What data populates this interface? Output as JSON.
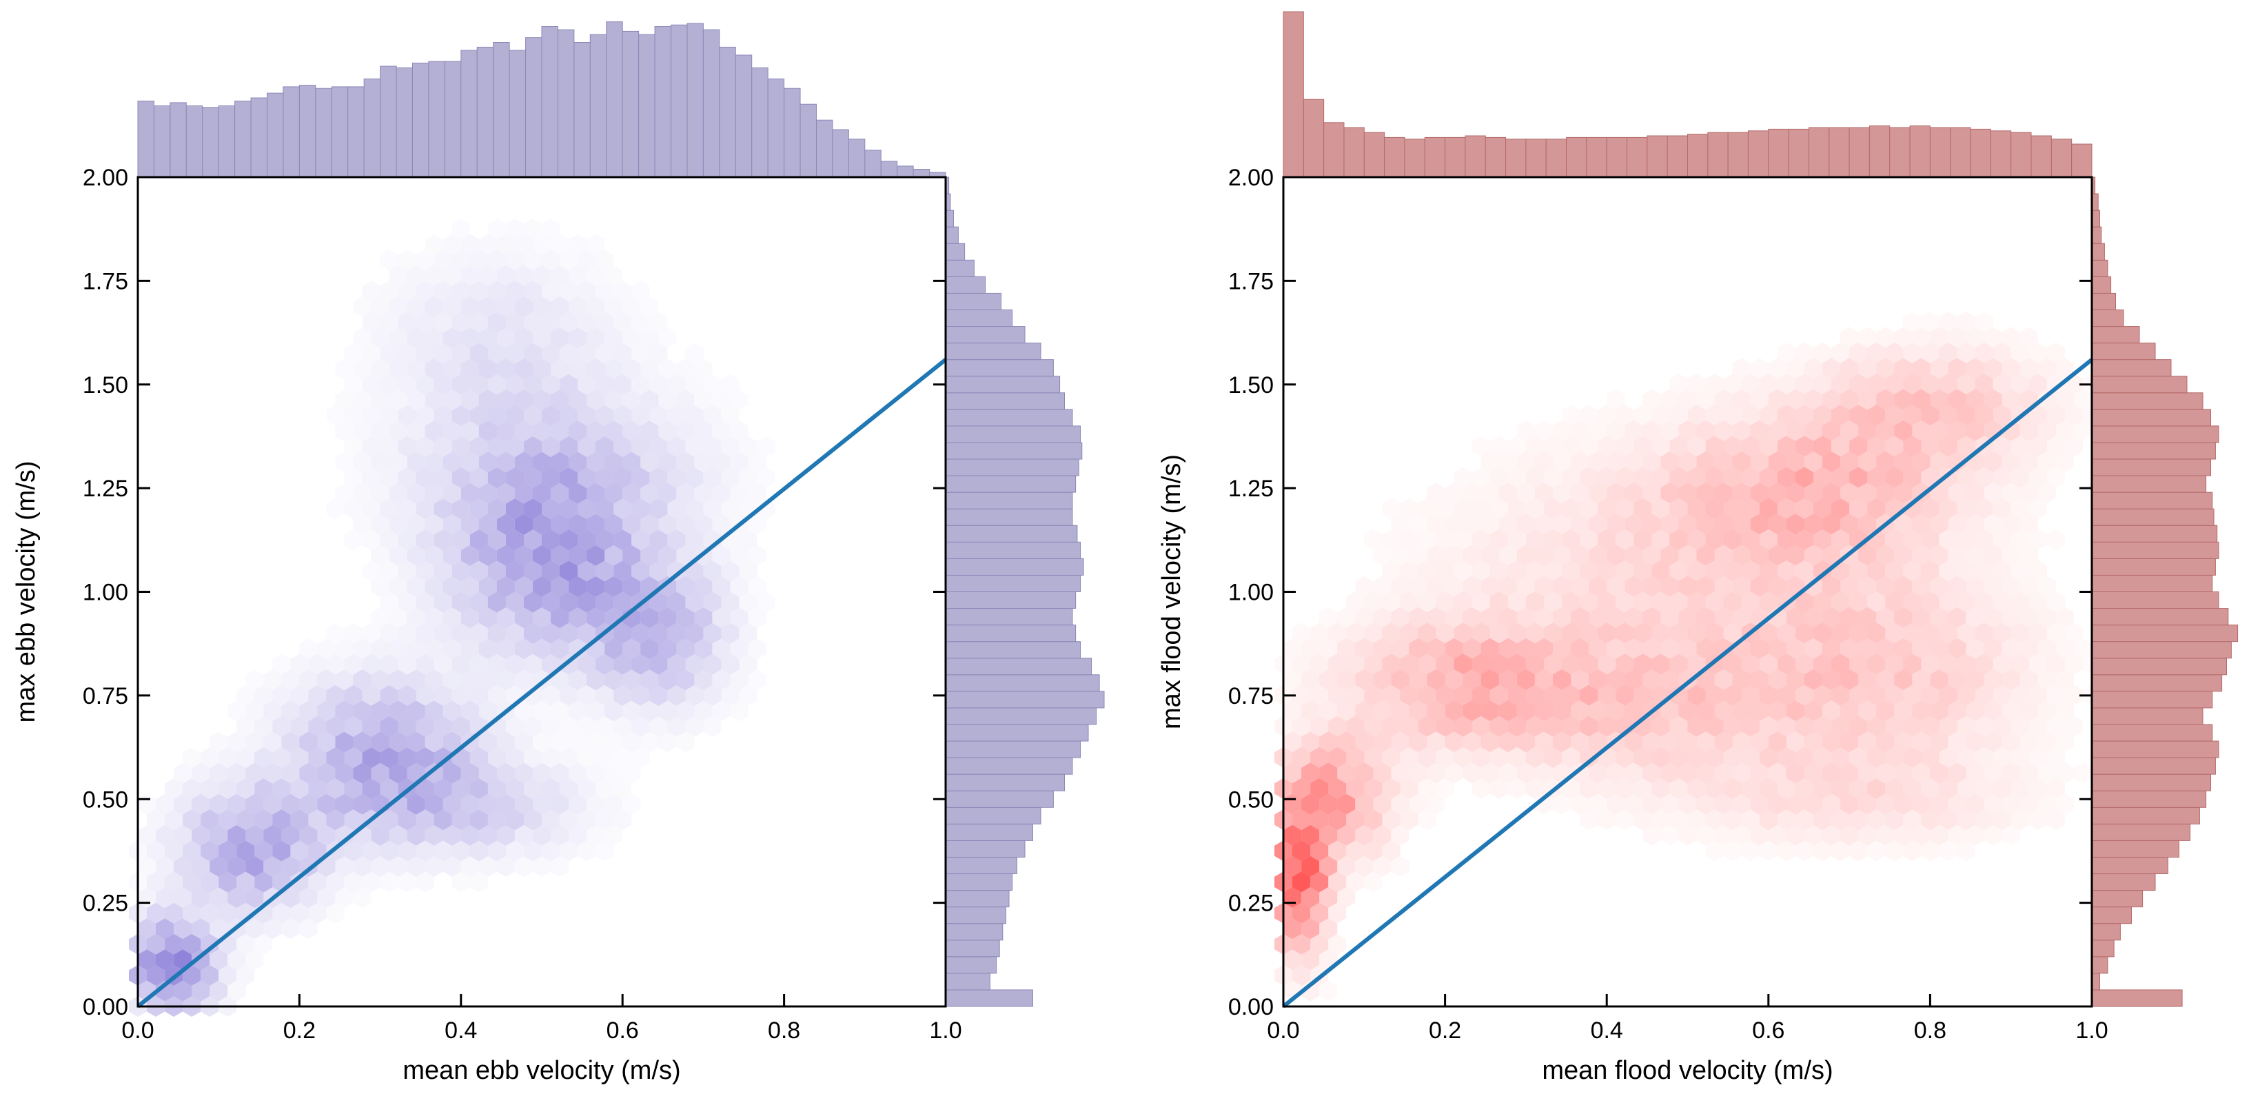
{
  "chart_data": [
    {
      "type": "hexbin",
      "title": "",
      "xlabel": "mean ebb velocity (m/s)",
      "ylabel": "max ebb velocity (m/s)",
      "xlim": [
        0,
        1.0
      ],
      "ylim": [
        0,
        2.0
      ],
      "xticks": [
        0.0,
        0.2,
        0.4,
        0.6,
        0.8,
        1.0
      ],
      "xtick_labels": [
        "0.0",
        "0.2",
        "0.4",
        "0.6",
        "0.8",
        "1.0"
      ],
      "yticks": [
        0.0,
        0.25,
        0.5,
        0.75,
        1.0,
        1.25,
        1.5,
        1.75,
        2.0
      ],
      "ytick_labels": [
        "0.00",
        "0.25",
        "0.50",
        "0.75",
        "1.00",
        "1.25",
        "1.50",
        "1.75",
        "2.00"
      ],
      "colors": {
        "hex": "#6a5acd",
        "hist_fill": "#b3b0d3",
        "hist_edge": "#8c88b8",
        "line": "#1f77b4"
      },
      "reference_line": {
        "x": [
          0.0,
          1.0
        ],
        "y": [
          0.0,
          1.56
        ]
      },
      "hex_density_centers": [
        {
          "x": 0.04,
          "y": 0.1,
          "w": 1.0,
          "sx": 0.04,
          "sy": 0.08
        },
        {
          "x": 0.14,
          "y": 0.38,
          "w": 0.8,
          "sx": 0.06,
          "sy": 0.1
        },
        {
          "x": 0.3,
          "y": 0.62,
          "w": 0.7,
          "sx": 0.08,
          "sy": 0.12
        },
        {
          "x": 0.5,
          "y": 1.05,
          "w": 0.75,
          "sx": 0.08,
          "sy": 0.14
        },
        {
          "x": 0.64,
          "y": 0.9,
          "w": 0.65,
          "sx": 0.06,
          "sy": 0.12
        },
        {
          "x": 0.52,
          "y": 1.28,
          "w": 0.5,
          "sx": 0.12,
          "sy": 0.14
        },
        {
          "x": 0.45,
          "y": 1.6,
          "w": 0.25,
          "sx": 0.1,
          "sy": 0.15
        },
        {
          "x": 0.4,
          "y": 0.48,
          "w": 0.45,
          "sx": 0.1,
          "sy": 0.08
        }
      ],
      "x_marginal": {
        "bins": 50,
        "range": [
          0,
          1.0
        ],
        "relative_counts": [
          0.48,
          0.45,
          0.47,
          0.45,
          0.44,
          0.45,
          0.48,
          0.5,
          0.53,
          0.57,
          0.58,
          0.56,
          0.57,
          0.57,
          0.62,
          0.7,
          0.69,
          0.72,
          0.73,
          0.73,
          0.8,
          0.82,
          0.85,
          0.8,
          0.88,
          0.95,
          0.93,
          0.85,
          0.9,
          0.98,
          0.92,
          0.9,
          0.95,
          0.96,
          0.97,
          0.93,
          0.82,
          0.77,
          0.69,
          0.62,
          0.56,
          0.46,
          0.36,
          0.3,
          0.24,
          0.17,
          0.1,
          0.07,
          0.05,
          0.03
        ]
      },
      "y_marginal": {
        "bins": 50,
        "range": [
          0,
          2.0
        ],
        "relative_counts": [
          0.55,
          0.28,
          0.32,
          0.34,
          0.36,
          0.38,
          0.4,
          0.42,
          0.45,
          0.5,
          0.55,
          0.6,
          0.68,
          0.75,
          0.8,
          0.85,
          0.9,
          0.95,
          1.0,
          0.97,
          0.92,
          0.85,
          0.82,
          0.8,
          0.82,
          0.85,
          0.87,
          0.85,
          0.83,
          0.8,
          0.8,
          0.82,
          0.84,
          0.86,
          0.85,
          0.8,
          0.75,
          0.72,
          0.68,
          0.6,
          0.5,
          0.42,
          0.35,
          0.25,
          0.18,
          0.12,
          0.08,
          0.05,
          0.03,
          0.02
        ]
      }
    },
    {
      "type": "hexbin",
      "title": "",
      "xlabel": "mean flood velocity (m/s)",
      "ylabel": "max flood velocity (m/s)",
      "xlim": [
        0,
        1.0
      ],
      "ylim": [
        0,
        2.0
      ],
      "xticks": [
        0.0,
        0.2,
        0.4,
        0.6,
        0.8,
        1.0
      ],
      "xtick_labels": [
        "0.0",
        "0.2",
        "0.4",
        "0.6",
        "0.8",
        "1.0"
      ],
      "yticks": [
        0.0,
        0.25,
        0.5,
        0.75,
        1.0,
        1.25,
        1.5,
        1.75,
        2.0
      ],
      "ytick_labels": [
        "0.00",
        "0.25",
        "0.50",
        "0.75",
        "1.00",
        "1.25",
        "1.50",
        "1.75",
        "2.00"
      ],
      "colors": {
        "hex": "#ff2020",
        "hist_fill": "#d39797",
        "hist_edge": "#b56a6a",
        "line": "#1f77b4"
      },
      "reference_line": {
        "x": [
          0.0,
          1.0
        ],
        "y": [
          0.0,
          1.56
        ]
      },
      "hex_density_centers": [
        {
          "x": 0.02,
          "y": 0.3,
          "w": 1.0,
          "sx": 0.025,
          "sy": 0.12
        },
        {
          "x": 0.06,
          "y": 0.5,
          "w": 0.6,
          "sx": 0.05,
          "sy": 0.1
        },
        {
          "x": 0.22,
          "y": 0.78,
          "w": 0.45,
          "sx": 0.1,
          "sy": 0.1
        },
        {
          "x": 0.45,
          "y": 0.72,
          "w": 0.3,
          "sx": 0.15,
          "sy": 0.12
        },
        {
          "x": 0.65,
          "y": 1.25,
          "w": 0.4,
          "sx": 0.12,
          "sy": 0.12
        },
        {
          "x": 0.8,
          "y": 1.45,
          "w": 0.35,
          "sx": 0.1,
          "sy": 0.1
        },
        {
          "x": 0.75,
          "y": 0.8,
          "w": 0.3,
          "sx": 0.12,
          "sy": 0.15
        },
        {
          "x": 0.5,
          "y": 1.05,
          "w": 0.25,
          "sx": 0.2,
          "sy": 0.2
        },
        {
          "x": 0.7,
          "y": 0.5,
          "w": 0.2,
          "sx": 0.15,
          "sy": 0.08
        }
      ],
      "x_marginal": {
        "bins": 40,
        "range": [
          0,
          1.0
        ],
        "relative_counts": [
          1.0,
          0.47,
          0.33,
          0.3,
          0.27,
          0.24,
          0.23,
          0.24,
          0.24,
          0.25,
          0.24,
          0.23,
          0.23,
          0.23,
          0.24,
          0.24,
          0.24,
          0.24,
          0.25,
          0.25,
          0.26,
          0.27,
          0.27,
          0.28,
          0.29,
          0.29,
          0.3,
          0.3,
          0.3,
          0.31,
          0.3,
          0.31,
          0.3,
          0.3,
          0.29,
          0.28,
          0.27,
          0.25,
          0.23,
          0.2
        ]
      },
      "y_marginal": {
        "bins": 50,
        "range": [
          0,
          2.0
        ],
        "relative_counts": [
          0.57,
          0.05,
          0.1,
          0.14,
          0.18,
          0.25,
          0.32,
          0.4,
          0.48,
          0.55,
          0.62,
          0.68,
          0.72,
          0.75,
          0.78,
          0.8,
          0.76,
          0.7,
          0.76,
          0.82,
          0.85,
          0.88,
          0.92,
          0.86,
          0.8,
          0.76,
          0.78,
          0.8,
          0.79,
          0.77,
          0.76,
          0.72,
          0.75,
          0.78,
          0.8,
          0.75,
          0.7,
          0.6,
          0.5,
          0.4,
          0.3,
          0.2,
          0.15,
          0.12,
          0.1,
          0.08,
          0.06,
          0.05,
          0.04,
          0.02
        ]
      }
    }
  ]
}
